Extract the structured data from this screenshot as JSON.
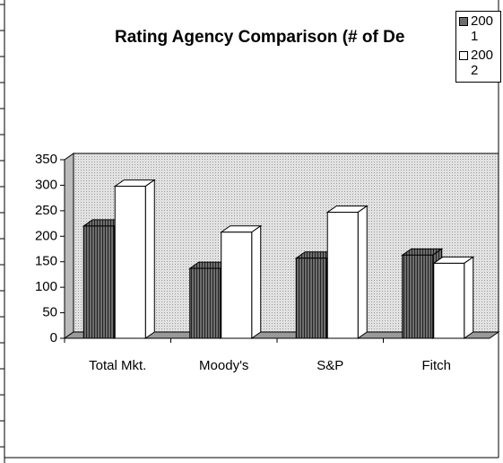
{
  "chart_data": {
    "type": "bar3d",
    "title": "Rating Agency Comparison (# of De",
    "categories": [
      "Total Mkt.",
      "Moody's",
      "S&P",
      "Fitch"
    ],
    "series": [
      {
        "name": "2001",
        "color": "#6e6e6e",
        "values": [
          220,
          137,
          157,
          163
        ]
      },
      {
        "name": "2002",
        "color": "#ffffff",
        "values": [
          298,
          208,
          247,
          147
        ]
      }
    ],
    "ylim": [
      0,
      350
    ],
    "yticks": [
      0,
      50,
      100,
      150,
      200,
      250,
      300,
      350
    ],
    "legend": "top-right"
  }
}
